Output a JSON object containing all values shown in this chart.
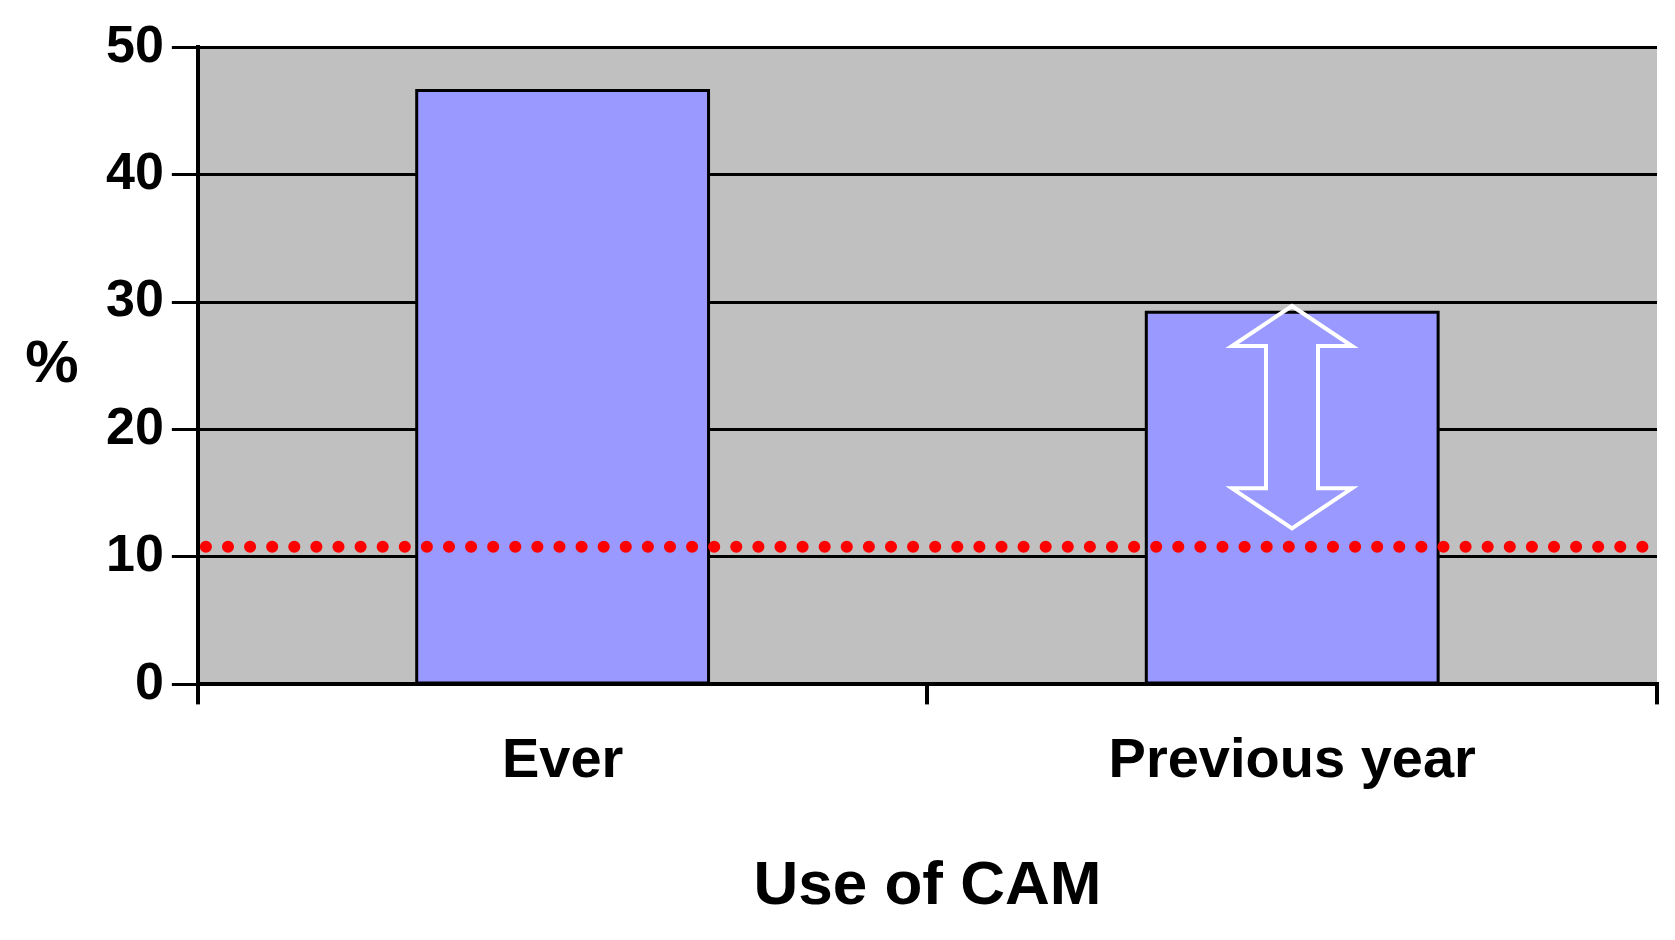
{
  "chart_data": {
    "type": "bar",
    "xlabel": "Use of CAM",
    "ylabel": "%",
    "categories": [
      "Ever",
      "Previous year"
    ],
    "values": [
      46.6,
      29.2
    ],
    "color": "#9999ff",
    "ylim": [
      0,
      50
    ],
    "yticks": [
      0,
      10,
      20,
      30,
      40,
      50
    ],
    "grid": "y",
    "legend": false,
    "ref_lines": [
      {
        "axis": "y",
        "value": 10.8,
        "color": "#ff0000",
        "line_style": "dotted"
      }
    ]
  }
}
